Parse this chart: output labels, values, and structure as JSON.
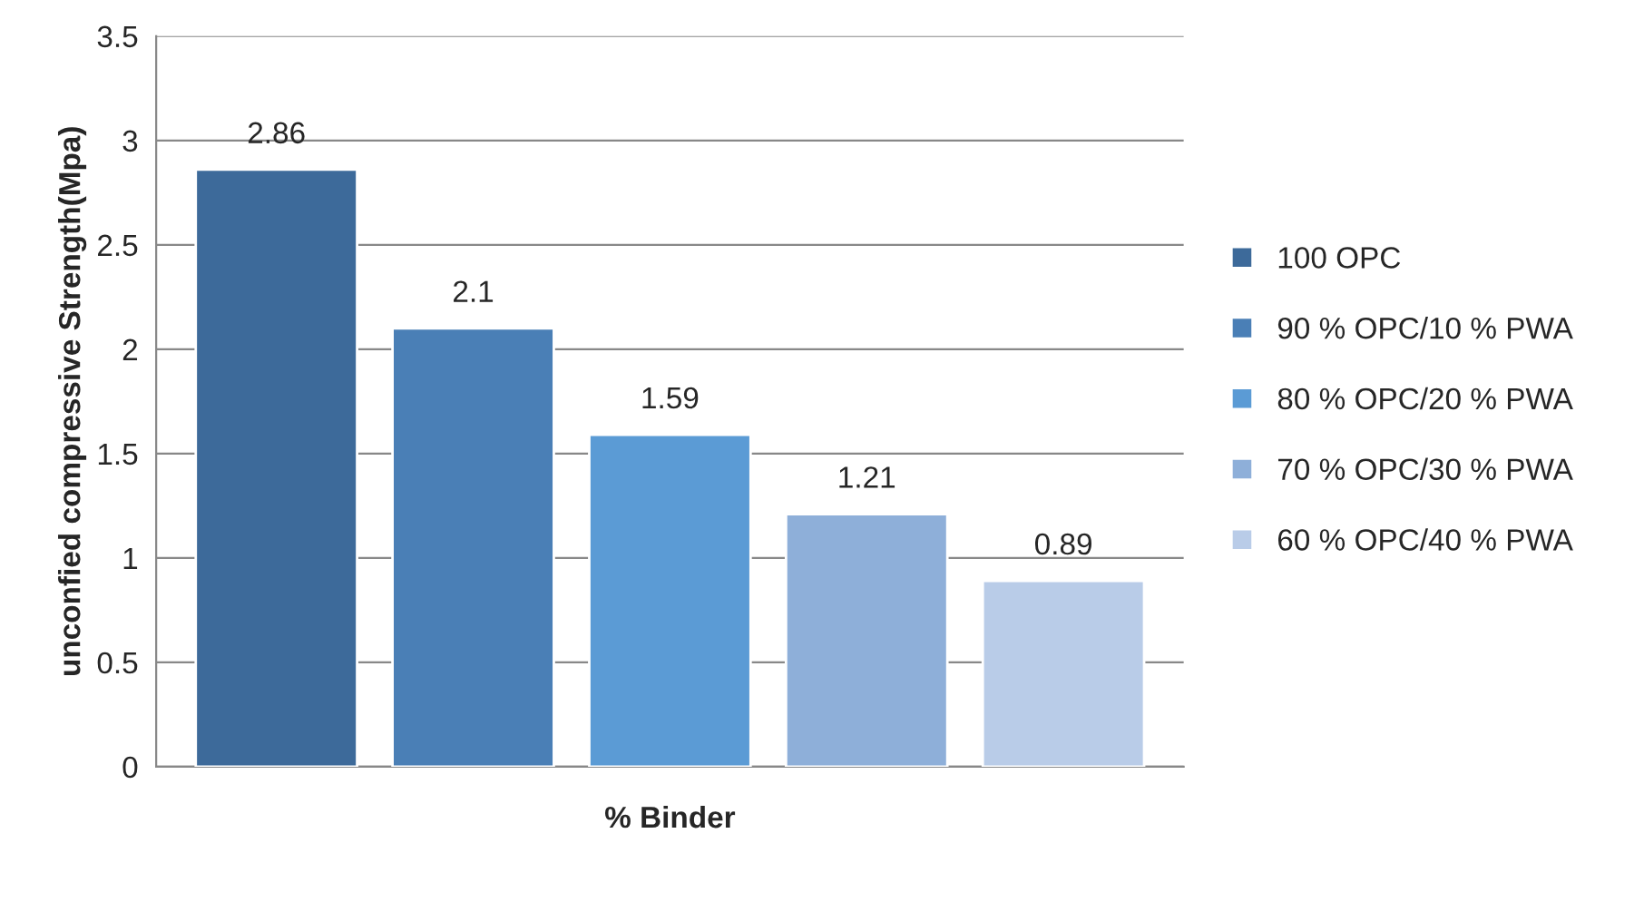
{
  "chart_data": {
    "type": "bar",
    "xlabel": "% Binder",
    "ylabel": "unconfied compressive Strength(Mpa)",
    "categories": [
      null
    ],
    "series": [
      {
        "name": "100 OPC",
        "color": "#3d6a9a",
        "values": [
          2.86
        ]
      },
      {
        "name": "90 % OPC/10 % PWA",
        "color": "#4a7fb6",
        "values": [
          2.1
        ]
      },
      {
        "name": "80 % OPC/20 % PWA",
        "color": "#5b9bd5",
        "values": [
          1.59
        ]
      },
      {
        "name": "70 % OPC/30 % PWA",
        "color": "#8eafd9",
        "values": [
          1.21
        ]
      },
      {
        "name": "60 % OPC/40 % PWA",
        "color": "#b9cce8",
        "values": [
          0.89
        ]
      }
    ],
    "ylim": [
      0,
      3.5
    ],
    "yticks": [
      0,
      0.5,
      1,
      1.5,
      2,
      2.5,
      3,
      3.5
    ],
    "grid": "y",
    "legend": "right",
    "data_labels": true
  }
}
